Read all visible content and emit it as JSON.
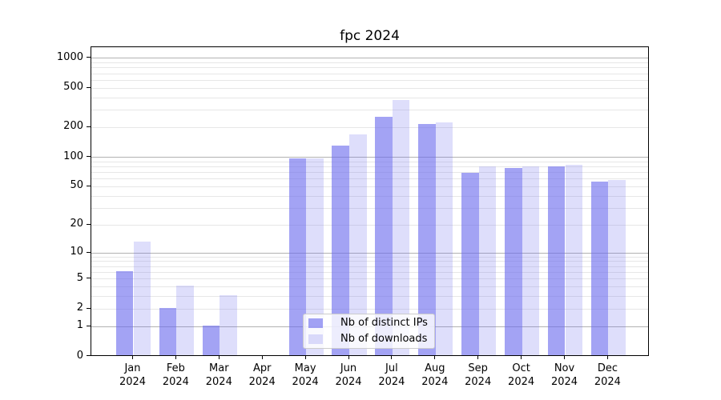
{
  "title": "fpc 2024",
  "chart_data": {
    "type": "bar",
    "title": "fpc 2024",
    "xlabel": "",
    "ylabel": "",
    "scale": "log1p",
    "ylim": [
      0,
      1350
    ],
    "grid": true,
    "legend_position": "lower center (inside plot)",
    "categories": [
      {
        "month": "Jan",
        "year": "2024"
      },
      {
        "month": "Feb",
        "year": "2024"
      },
      {
        "month": "Mar",
        "year": "2024"
      },
      {
        "month": "Apr",
        "year": "2024"
      },
      {
        "month": "May",
        "year": "2024"
      },
      {
        "month": "Jun",
        "year": "2024"
      },
      {
        "month": "Jul",
        "year": "2024"
      },
      {
        "month": "Aug",
        "year": "2024"
      },
      {
        "month": "Sep",
        "year": "2024"
      },
      {
        "month": "Oct",
        "year": "2024"
      },
      {
        "month": "Nov",
        "year": "2024"
      },
      {
        "month": "Dec",
        "year": "2024"
      }
    ],
    "series": [
      {
        "name": "Nb of distinct IPs",
        "color": "rgba(107,107,238,0.62)",
        "values": [
          6,
          2,
          1,
          0,
          94,
          127,
          250,
          210,
          67,
          75,
          79,
          55
        ]
      },
      {
        "name": "Nb of downloads",
        "color": "rgba(107,107,238,0.22)",
        "values": [
          13,
          4,
          3,
          0,
          94,
          166,
          370,
          220,
          79,
          78,
          82,
          57
        ]
      }
    ],
    "yticks": [
      0,
      1,
      2,
      5,
      10,
      20,
      50,
      100,
      200,
      500,
      1000
    ],
    "major_gridlines": [
      1,
      10,
      100,
      1000
    ],
    "minor_gridlines": [
      2,
      3,
      4,
      5,
      6,
      7,
      8,
      9,
      20,
      30,
      40,
      50,
      60,
      70,
      80,
      90,
      200,
      300,
      400,
      500,
      600,
      700,
      800,
      900
    ],
    "colors": {
      "major_grid": "#b2b2b2",
      "minor_grid": "#e7e7e7",
      "spine": "#000000",
      "legend_border": "#cccccc"
    }
  }
}
